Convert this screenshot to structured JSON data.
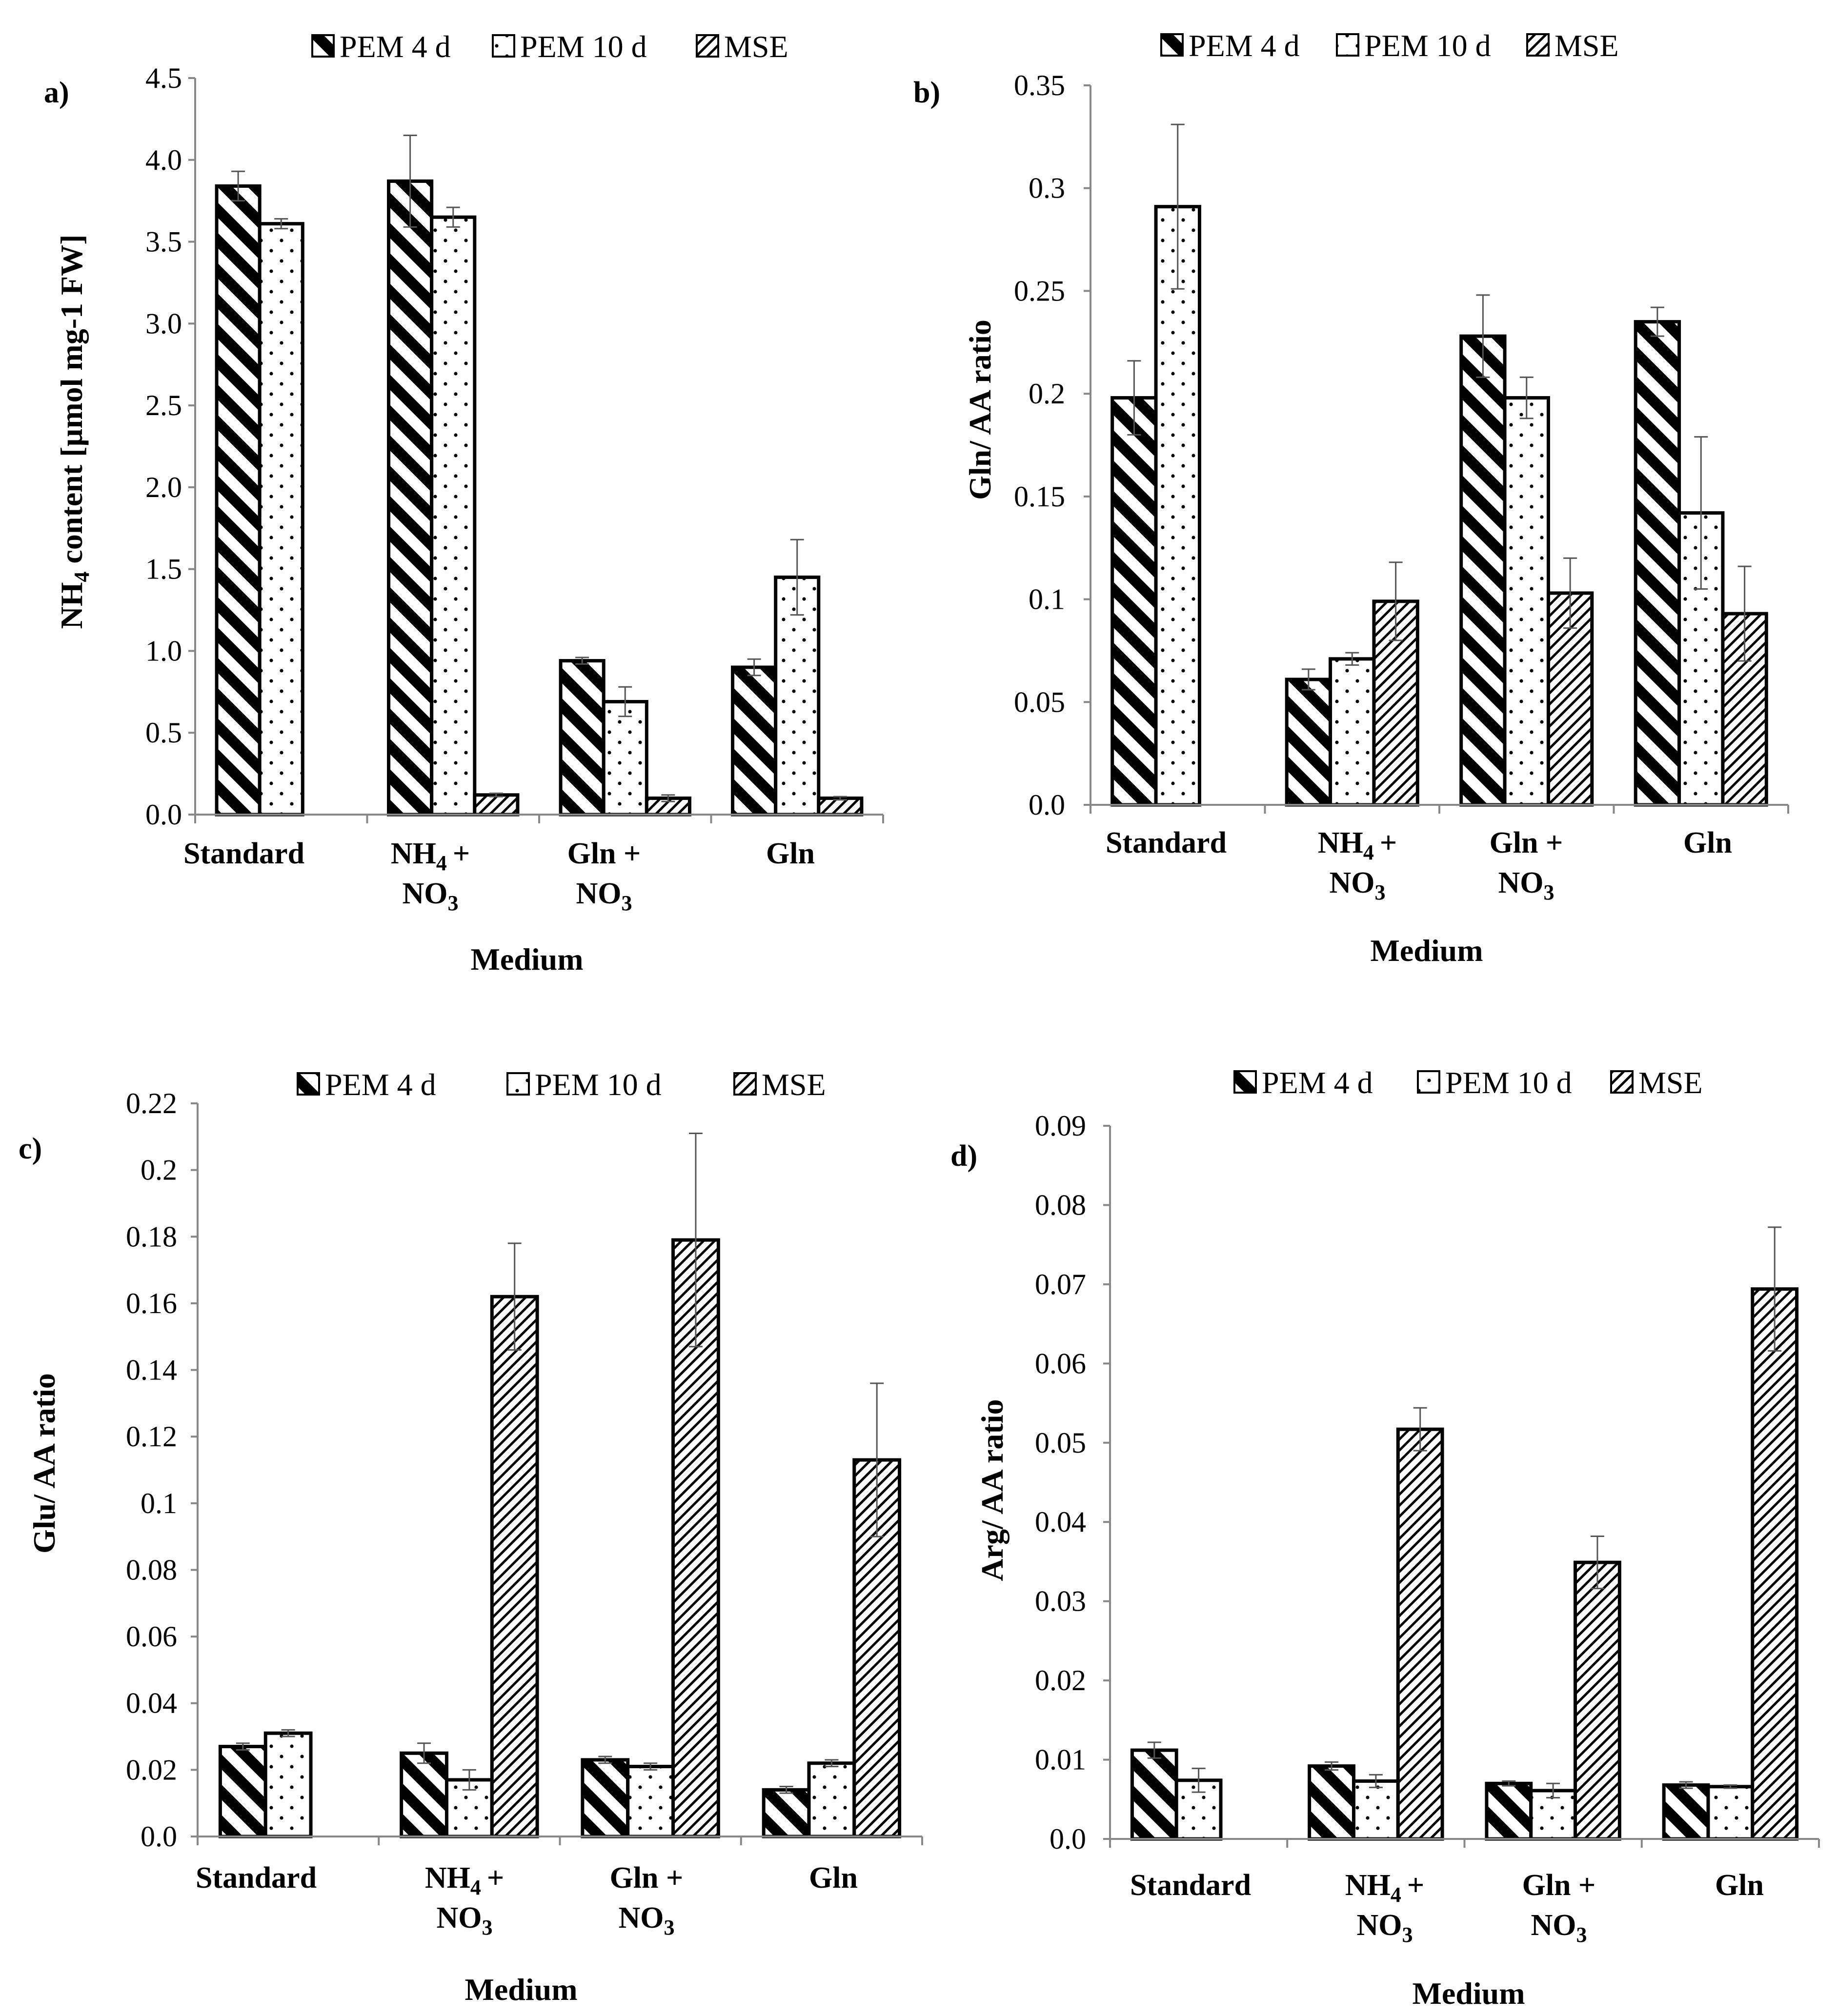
{
  "figure": {
    "legend": [
      "PEM 4 d",
      "PEM 10 d",
      "MSE"
    ],
    "colors": {
      "ink": "#000000",
      "background": "#ffffff",
      "axis": "#888888"
    }
  },
  "chart_data": [
    {
      "panel": "a)",
      "type": "bar",
      "categories": [
        "Standard",
        "NH4 + NO3",
        "Gln + NO3",
        "Gln"
      ],
      "category_lines": [
        [
          "Standard"
        ],
        [
          "NH",
          "4",
          "+"
        ],
        [
          "NO",
          "3",
          ""
        ],
        [
          "Gln +"
        ],
        [
          "NO",
          "3",
          ""
        ],
        [
          "Gln"
        ]
      ],
      "xlabel": "Medium",
      "ylabel_parts": [
        "NH",
        "4",
        " content [µmol mg-1 FW]"
      ],
      "ylim": [
        0,
        4.5
      ],
      "yticks": [
        "0.0",
        "0.5",
        "1.0",
        "1.5",
        "2.0",
        "2.5",
        "3.0",
        "3.5",
        "4.0",
        "4.5"
      ],
      "series": [
        {
          "name": "PEM 4 d",
          "values": [
            3.84,
            3.87,
            0.94,
            0.9
          ],
          "errors": [
            0.09,
            0.28,
            0.02,
            0.05
          ]
        },
        {
          "name": "PEM 10 d",
          "values": [
            3.61,
            3.65,
            0.69,
            1.45
          ],
          "errors": [
            0.03,
            0.06,
            0.09,
            0.23
          ]
        },
        {
          "name": "MSE",
          "values": [
            null,
            0.12,
            0.1,
            0.1
          ],
          "errors": [
            null,
            0.01,
            0.02,
            0.01
          ]
        }
      ]
    },
    {
      "panel": "b)",
      "type": "bar",
      "categories": [
        "Standard",
        "NH4 + NO3",
        "Gln + NO3",
        "Gln"
      ],
      "xlabel": "Medium",
      "ylabel": "Gln/ AA ratio",
      "ylim": [
        0,
        0.35
      ],
      "yticks": [
        "0.0",
        "0.05",
        "0.1",
        "0.15",
        "0.2",
        "0.25",
        "0.3",
        "0.35"
      ],
      "series": [
        {
          "name": "PEM 4 d",
          "values": [
            0.198,
            0.061,
            0.228,
            0.235
          ],
          "errors": [
            0.018,
            0.005,
            0.02,
            0.007
          ]
        },
        {
          "name": "PEM 10 d",
          "values": [
            0.291,
            0.071,
            0.198,
            0.142
          ],
          "errors": [
            0.04,
            0.003,
            0.01,
            0.037
          ]
        },
        {
          "name": "MSE",
          "values": [
            null,
            0.099,
            0.103,
            0.093
          ],
          "errors": [
            null,
            0.019,
            0.017,
            0.023
          ]
        }
      ]
    },
    {
      "panel": "c)",
      "type": "bar",
      "categories": [
        "Standard",
        "NH4 + NO3",
        "Gln + NO3",
        "Gln"
      ],
      "xlabel": "Medium",
      "ylabel": "Glu/ AA ratio",
      "ylim": [
        0,
        0.22
      ],
      "yticks": [
        "0.0",
        "0.02",
        "0.04",
        "0.06",
        "0.08",
        "0.1",
        "0.12",
        "0.14",
        "0.16",
        "0.18",
        "0.2",
        "0.22"
      ],
      "series": [
        {
          "name": "PEM 4 d",
          "values": [
            0.027,
            0.025,
            0.023,
            0.014
          ],
          "errors": [
            0.001,
            0.003,
            0.001,
            0.001
          ]
        },
        {
          "name": "PEM 10 d",
          "values": [
            0.031,
            0.017,
            0.021,
            0.022
          ],
          "errors": [
            0.001,
            0.003,
            0.001,
            0.001
          ]
        },
        {
          "name": "MSE",
          "values": [
            null,
            0.162,
            0.179,
            0.113
          ],
          "errors": [
            null,
            0.016,
            0.032,
            0.023
          ]
        }
      ]
    },
    {
      "panel": "d)",
      "type": "bar",
      "categories": [
        "Standard",
        "NH4 + NO3",
        "Gln + NO3",
        "Gln"
      ],
      "xlabel": "Medium",
      "ylabel": "Arg/ AA ratio",
      "ylim": [
        0,
        0.09
      ],
      "yticks": [
        "0.0",
        "0.01",
        "0.02",
        "0.03",
        "0.04",
        "0.05",
        "0.06",
        "0.07",
        "0.08",
        "0.09"
      ],
      "series": [
        {
          "name": "PEM 4 d",
          "values": [
            0.0112,
            0.0092,
            0.007,
            0.0068
          ],
          "errors": [
            0.001,
            0.0005,
            0.0003,
            0.0004
          ]
        },
        {
          "name": "PEM 10 d",
          "values": [
            0.0074,
            0.0073,
            0.0061,
            0.0066
          ],
          "errors": [
            0.0015,
            0.0008,
            0.0009,
            0.0002
          ]
        },
        {
          "name": "MSE",
          "values": [
            null,
            0.0517,
            0.0349,
            0.0694
          ],
          "errors": [
            null,
            0.0027,
            0.0033,
            0.0078
          ]
        }
      ]
    }
  ]
}
